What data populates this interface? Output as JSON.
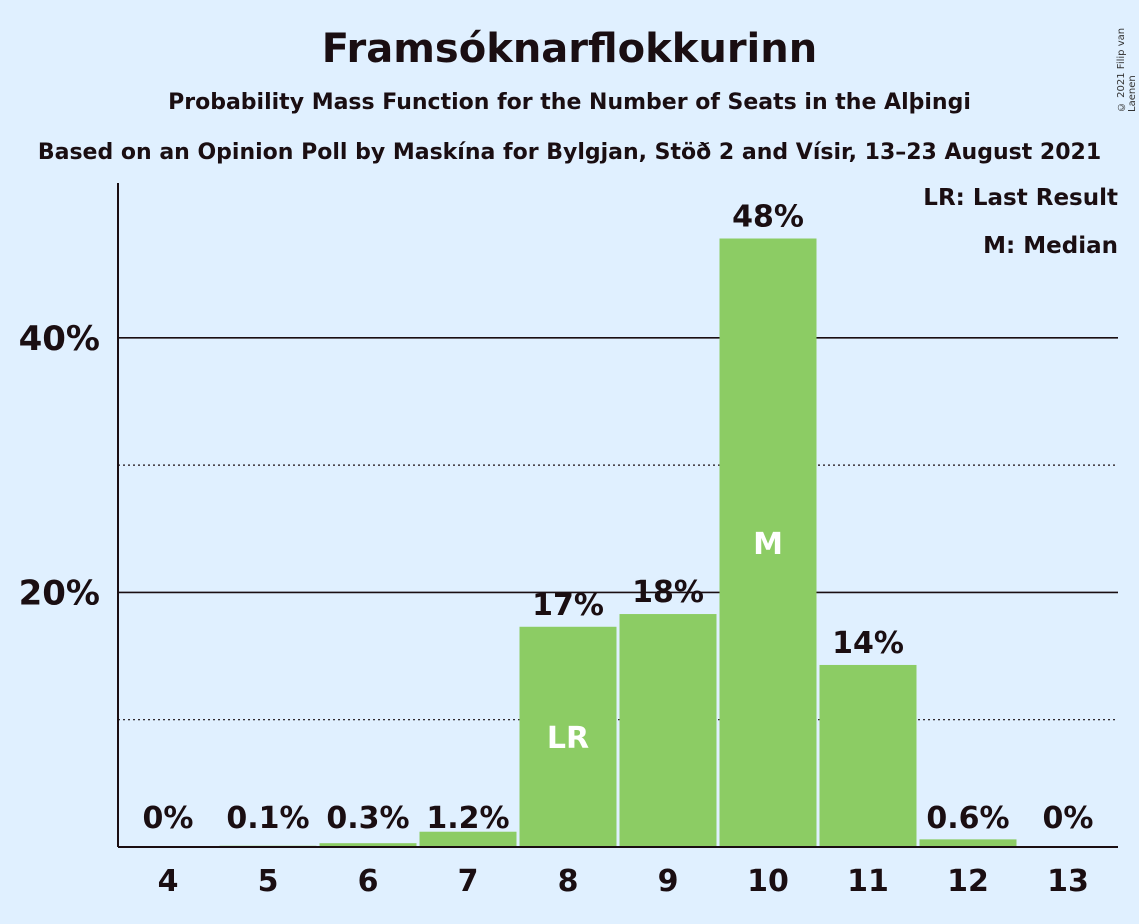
{
  "chart_data": {
    "type": "bar",
    "title": "Framsóknarflokkurinn",
    "subtitle": "Probability Mass Function for the Number of Seats in the Alþingi",
    "source_line": "Based on an Opinion Poll by Maskína for Bylgjan, Stöð 2 and Vísir, 13–23 August 2021",
    "copyright": "© 2021 Filip van Laenen",
    "legend": [
      "LR: Last Result",
      "M: Median"
    ],
    "legend_position": "top-right",
    "categories": [
      "4",
      "5",
      "6",
      "7",
      "8",
      "9",
      "10",
      "11",
      "12",
      "13"
    ],
    "values": [
      0,
      0.1,
      0.3,
      1.2,
      17.3,
      18.3,
      47.8,
      14.3,
      0.6,
      0
    ],
    "value_labels": [
      "0%",
      "0.1%",
      "0.3%",
      "1.2%",
      "17%",
      "18%",
      "48%",
      "14%",
      "0.6%",
      "0%"
    ],
    "bar_markers": {
      "8": "LR",
      "10": "M"
    },
    "ylim": [
      0,
      52
    ],
    "yticks_major": [
      20,
      40
    ],
    "ytick_labels": [
      "20%",
      "40%"
    ],
    "yticks_minor": [
      10,
      30
    ],
    "grid": true,
    "colors": {
      "bar": "#8ccc64",
      "background": "#e0f0ff",
      "text": "#1a0e12",
      "marker_text": "#ffffff"
    }
  }
}
